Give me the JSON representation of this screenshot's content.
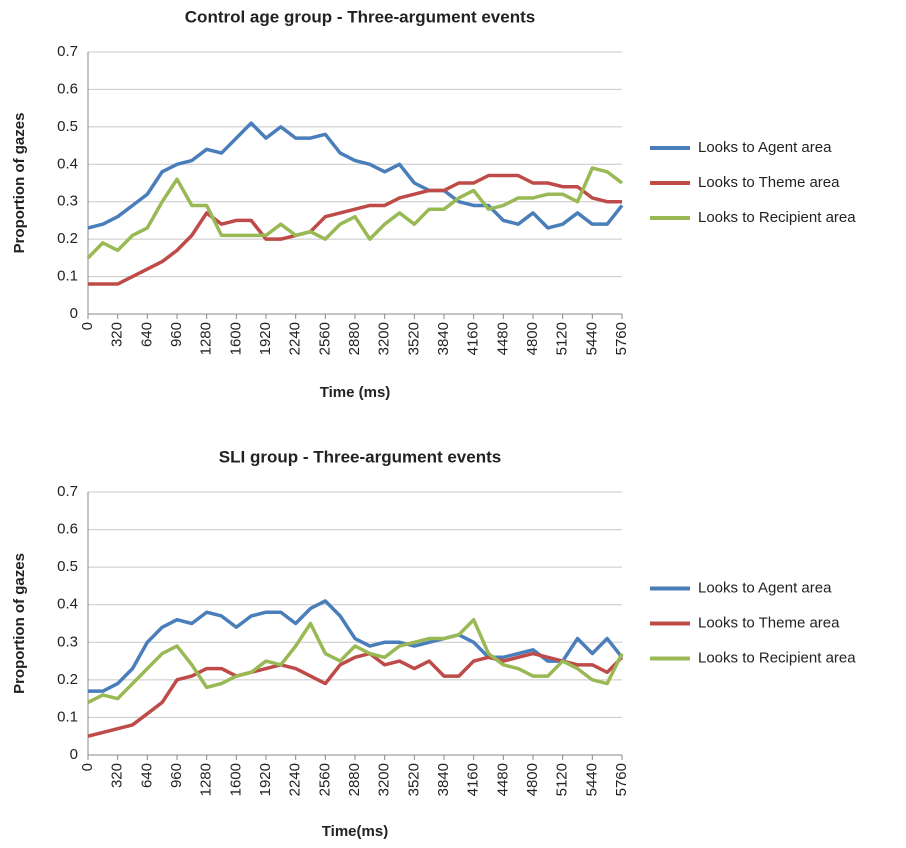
{
  "chart_data": [
    {
      "type": "line",
      "title": "Control age group - Three-argument events",
      "xlabel": "Time (ms)",
      "ylabel": "Proportion of gazes",
      "x": [
        0,
        160,
        320,
        480,
        640,
        800,
        960,
        1120,
        1280,
        1440,
        1600,
        1760,
        1920,
        2080,
        2240,
        2400,
        2560,
        2720,
        2880,
        3040,
        3200,
        3360,
        3520,
        3680,
        3840,
        4000,
        4160,
        4320,
        4480,
        4640,
        4800,
        4960,
        5120,
        5280,
        5440,
        5600,
        5760
      ],
      "xlim": [
        0,
        5760
      ],
      "xticks": [
        0,
        320,
        640,
        960,
        1280,
        1600,
        1920,
        2240,
        2560,
        2880,
        3200,
        3520,
        3840,
        4160,
        4480,
        4800,
        5120,
        5440,
        5760
      ],
      "ylim": [
        0,
        0.7
      ],
      "yticks": [
        0,
        0.1,
        0.2,
        0.3,
        0.4,
        0.5,
        0.6,
        0.7
      ],
      "grid": true,
      "legend": "right",
      "series": [
        {
          "name": "Looks to Agent area",
          "color": "#4a7ebb",
          "values": [
            0.23,
            0.24,
            0.26,
            0.29,
            0.32,
            0.38,
            0.4,
            0.41,
            0.44,
            0.43,
            0.47,
            0.51,
            0.47,
            0.5,
            0.47,
            0.47,
            0.48,
            0.43,
            0.41,
            0.4,
            0.38,
            0.4,
            0.35,
            0.33,
            0.33,
            0.3,
            0.29,
            0.29,
            0.25,
            0.24,
            0.27,
            0.23,
            0.24,
            0.27,
            0.24,
            0.24,
            0.29
          ]
        },
        {
          "name": "Looks to Theme area",
          "color": "#be4b48",
          "values": [
            0.08,
            0.08,
            0.08,
            0.1,
            0.12,
            0.14,
            0.17,
            0.21,
            0.27,
            0.24,
            0.25,
            0.25,
            0.2,
            0.2,
            0.21,
            0.22,
            0.26,
            0.27,
            0.28,
            0.29,
            0.29,
            0.31,
            0.32,
            0.33,
            0.33,
            0.35,
            0.35,
            0.37,
            0.37,
            0.37,
            0.35,
            0.35,
            0.34,
            0.34,
            0.31,
            0.3,
            0.3
          ]
        },
        {
          "name": "Looks to Recipient area",
          "color": "#98b954",
          "values": [
            0.15,
            0.19,
            0.17,
            0.21,
            0.23,
            0.3,
            0.36,
            0.29,
            0.29,
            0.21,
            0.21,
            0.21,
            0.21,
            0.24,
            0.21,
            0.22,
            0.2,
            0.24,
            0.26,
            0.2,
            0.24,
            0.27,
            0.24,
            0.28,
            0.28,
            0.31,
            0.33,
            0.28,
            0.29,
            0.31,
            0.31,
            0.32,
            0.32,
            0.3,
            0.39,
            0.38,
            0.35
          ]
        }
      ]
    },
    {
      "type": "line",
      "title": "SLI group - Three-argument events",
      "xlabel": "Time(ms)",
      "ylabel": "Proportion of gazes",
      "x": [
        0,
        160,
        320,
        480,
        640,
        800,
        960,
        1120,
        1280,
        1440,
        1600,
        1760,
        1920,
        2080,
        2240,
        2400,
        2560,
        2720,
        2880,
        3040,
        3200,
        3360,
        3520,
        3680,
        3840,
        4000,
        4160,
        4320,
        4480,
        4640,
        4800,
        4960,
        5120,
        5280,
        5440,
        5600,
        5760
      ],
      "xlim": [
        0,
        5760
      ],
      "xticks": [
        0,
        320,
        640,
        960,
        1280,
        1600,
        1920,
        2240,
        2560,
        2880,
        3200,
        3520,
        3840,
        4160,
        4480,
        4800,
        5120,
        5440,
        5760
      ],
      "ylim": [
        0,
        0.7
      ],
      "yticks": [
        0,
        0.1,
        0.2,
        0.3,
        0.4,
        0.5,
        0.6,
        0.7
      ],
      "grid": true,
      "legend": "right",
      "series": [
        {
          "name": "Looks to Agent area",
          "color": "#4a7ebb",
          "values": [
            0.17,
            0.17,
            0.19,
            0.23,
            0.3,
            0.34,
            0.36,
            0.35,
            0.38,
            0.37,
            0.34,
            0.37,
            0.38,
            0.38,
            0.35,
            0.39,
            0.41,
            0.37,
            0.31,
            0.29,
            0.3,
            0.3,
            0.29,
            0.3,
            0.31,
            0.32,
            0.3,
            0.26,
            0.26,
            0.27,
            0.28,
            0.25,
            0.25,
            0.31,
            0.27,
            0.31,
            0.26
          ]
        },
        {
          "name": "Looks to Theme area",
          "color": "#be4b48",
          "values": [
            0.05,
            0.06,
            0.07,
            0.08,
            0.11,
            0.14,
            0.2,
            0.21,
            0.23,
            0.23,
            0.21,
            0.22,
            0.23,
            0.24,
            0.23,
            0.21,
            0.19,
            0.24,
            0.26,
            0.27,
            0.24,
            0.25,
            0.23,
            0.25,
            0.21,
            0.21,
            0.25,
            0.26,
            0.25,
            0.26,
            0.27,
            0.26,
            0.25,
            0.24,
            0.24,
            0.22,
            0.26
          ]
        },
        {
          "name": "Looks to Recipient area",
          "color": "#98b954",
          "values": [
            0.14,
            0.16,
            0.15,
            0.19,
            0.23,
            0.27,
            0.29,
            0.24,
            0.18,
            0.19,
            0.21,
            0.22,
            0.25,
            0.24,
            0.29,
            0.35,
            0.27,
            0.25,
            0.29,
            0.27,
            0.26,
            0.29,
            0.3,
            0.31,
            0.31,
            0.32,
            0.36,
            0.27,
            0.24,
            0.23,
            0.21,
            0.21,
            0.25,
            0.23,
            0.2,
            0.19,
            0.27
          ]
        }
      ]
    }
  ]
}
